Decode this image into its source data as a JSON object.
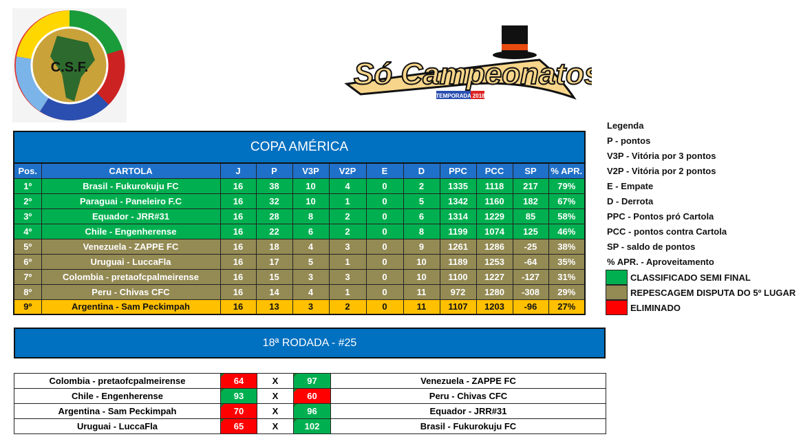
{
  "logos": {
    "left": "C.S.F.",
    "right": "Só Campeonatos",
    "right_badge": "TEMPORADA 2018"
  },
  "standings": {
    "title": "COPA AMÉRICA",
    "headers": [
      "Pos.",
      "CARTOLA",
      "J",
      "P",
      "V3P",
      "V2P",
      "E",
      "D",
      "PPC",
      "PCC",
      "SP",
      "% APR."
    ],
    "rows": [
      {
        "status": "g",
        "cells": [
          "1º",
          "Brasil - Fukurokuju FC",
          "16",
          "38",
          "10",
          "4",
          "0",
          "2",
          "1335",
          "1118",
          "217",
          "79%"
        ]
      },
      {
        "status": "g",
        "cells": [
          "2º",
          "Paraguai - Paneleiro F.C",
          "16",
          "32",
          "10",
          "1",
          "0",
          "5",
          "1342",
          "1160",
          "182",
          "67%"
        ]
      },
      {
        "status": "g",
        "cells": [
          "3º",
          "Equador - JRR#31",
          "16",
          "28",
          "8",
          "2",
          "0",
          "6",
          "1314",
          "1229",
          "85",
          "58%"
        ]
      },
      {
        "status": "g",
        "cells": [
          "4º",
          "Chile - Engenherense",
          "16",
          "22",
          "6",
          "2",
          "0",
          "8",
          "1199",
          "1074",
          "125",
          "46%"
        ]
      },
      {
        "status": "o",
        "cells": [
          "5º",
          "Venezuela - ZAPPE FC",
          "16",
          "18",
          "4",
          "3",
          "0",
          "9",
          "1261",
          "1286",
          "-25",
          "38%"
        ]
      },
      {
        "status": "o",
        "cells": [
          "6º",
          "Uruguai - LuccaFla",
          "16",
          "17",
          "5",
          "1",
          "0",
          "10",
          "1189",
          "1253",
          "-64",
          "35%"
        ]
      },
      {
        "status": "o",
        "cells": [
          "7º",
          "Colombia - pretaofcpalmeirense",
          "16",
          "15",
          "3",
          "3",
          "0",
          "10",
          "1100",
          "1227",
          "-127",
          "31%"
        ]
      },
      {
        "status": "o",
        "cells": [
          "8º",
          "Peru - Chivas CFC",
          "16",
          "14",
          "4",
          "1",
          "0",
          "11",
          "972",
          "1280",
          "-308",
          "29%"
        ]
      },
      {
        "status": "y",
        "cells": [
          "9º",
          "Argentina - Sam Peckimpah",
          "16",
          "13",
          "3",
          "2",
          "0",
          "11",
          "1107",
          "1203",
          "-96",
          "27%"
        ]
      }
    ]
  },
  "legend": {
    "title": "Legenda",
    "items": [
      "P - pontos",
      "V3P - Vitória por 3 pontos",
      "V2P - Vitória por 2 pontos",
      "E - Empate",
      "D - Derrota",
      "PPC - Pontos pró Cartola",
      "PCC - pontos contra Cartola",
      "SP - saldo de pontos",
      "% APR. - Aproveitamento"
    ],
    "colors": [
      {
        "color": "#00b050",
        "label": "CLASSIFICADO SEMI FINAL"
      },
      {
        "color": "#948a54",
        "label": "REPESCAGEM DISPUTA DO 5º LUGAR"
      },
      {
        "color": "#ff0000",
        "label": "ELIMINADO"
      }
    ]
  },
  "rodada": {
    "title": "18ª RODADA - #25"
  },
  "matches": [
    {
      "home": "Colombia - pretaofcpalmeirense",
      "hs": "64",
      "hc": "#ff0000",
      "x": "X",
      "as": "97",
      "ac": "#00b050",
      "away": "Venezuela - ZAPPE FC"
    },
    {
      "home": "Chile - Engenherense",
      "hs": "93",
      "hc": "#00b050",
      "x": "X",
      "as": "60",
      "ac": "#ff0000",
      "away": "Peru - Chivas CFC"
    },
    {
      "home": "Argentina - Sam Peckimpah",
      "hs": "70",
      "hc": "#ff0000",
      "x": "X",
      "as": "96",
      "ac": "#00b050",
      "away": "Equador - JRR#31"
    },
    {
      "home": "Uruguai - LuccaFla",
      "hs": "65",
      "hc": "#ff0000",
      "x": "X",
      "as": "102",
      "ac": "#00b050",
      "away": "Brasil - Fukurokuju FC"
    }
  ]
}
